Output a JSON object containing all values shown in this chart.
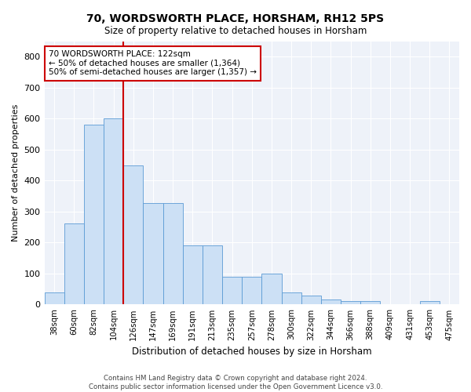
{
  "title": "70, WORDSWORTH PLACE, HORSHAM, RH12 5PS",
  "subtitle": "Size of property relative to detached houses in Horsham",
  "xlabel": "Distribution of detached houses by size in Horsham",
  "ylabel": "Number of detached properties",
  "categories": [
    "38sqm",
    "60sqm",
    "82sqm",
    "104sqm",
    "126sqm",
    "147sqm",
    "169sqm",
    "191sqm",
    "213sqm",
    "235sqm",
    "257sqm",
    "278sqm",
    "300sqm",
    "322sqm",
    "344sqm",
    "366sqm",
    "388sqm",
    "409sqm",
    "431sqm",
    "453sqm",
    "475sqm"
  ],
  "values": [
    38,
    262,
    580,
    600,
    450,
    328,
    328,
    192,
    192,
    90,
    90,
    100,
    38,
    30,
    17,
    12,
    12,
    0,
    0,
    12,
    0
  ],
  "bar_color": "#cce0f5",
  "bar_edge_color": "#5b9bd5",
  "vline_color": "#cc0000",
  "annotation_box_text": "70 WORDSWORTH PLACE: 122sqm\n← 50% of detached houses are smaller (1,364)\n50% of semi-detached houses are larger (1,357) →",
  "annotation_box_color": "#cc0000",
  "ylim": [
    0,
    850
  ],
  "yticks": [
    0,
    100,
    200,
    300,
    400,
    500,
    600,
    700,
    800
  ],
  "bg_color": "#eef2f9",
  "grid_color": "#ffffff",
  "footer_line1": "Contains HM Land Registry data © Crown copyright and database right 2024.",
  "footer_line2": "Contains public sector information licensed under the Open Government Licence v3.0."
}
